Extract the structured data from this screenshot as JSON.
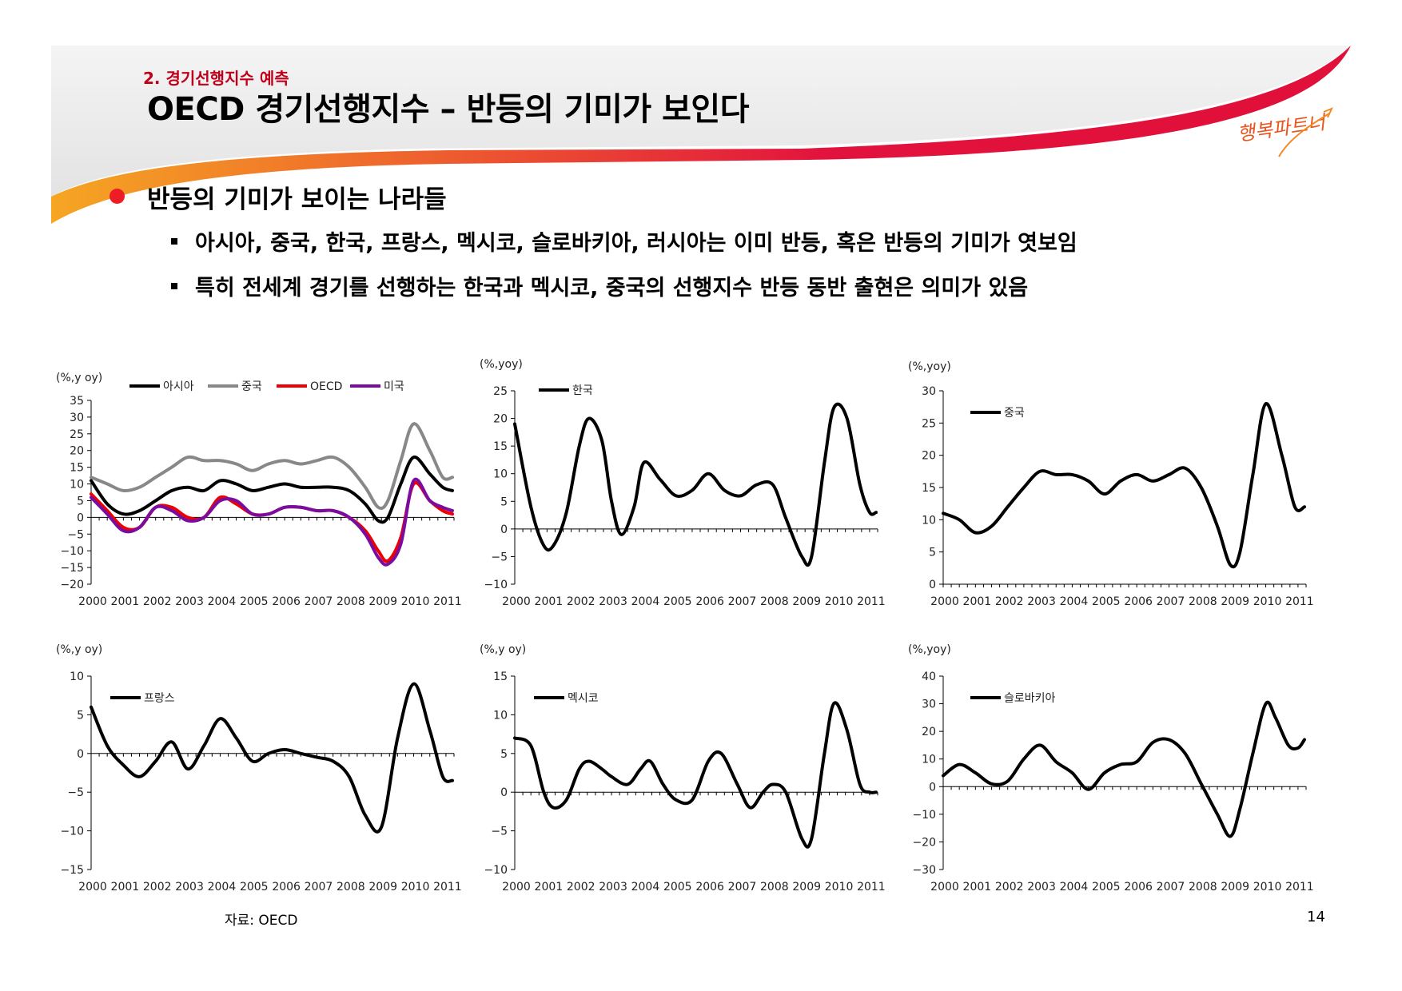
{
  "header": {
    "section": "2. 경기선행지수 예측",
    "title": "OECD 경기선행지수 – 반등의 기미가 보인다",
    "logo_text": "행복파트너"
  },
  "bullets": {
    "heading": "반등의 기미가 보이는 나라들",
    "items": [
      "아시아, 중국, 한국, 프랑스, 멕시코, 슬로바키아, 러시아는 이미 반등, 혹은 반등의 기미가 엿보임",
      "특히 전세계 경기를 선행하는 한국과 멕시코, 중국의 선행지수 반등 동반 출현은 의미가 있음"
    ]
  },
  "colors": {
    "accent_red": "#ee1c25",
    "section_red": "#c0001a",
    "asia": "#000000",
    "china": "#888888",
    "oecd": "#ee0000",
    "usa": "#7a0ca0"
  },
  "footer": {
    "source": "자료: OECD",
    "page": "14"
  },
  "chart_data": [
    {
      "type": "line",
      "ylabel": "(%,y oy)",
      "ylim": [
        -20,
        35
      ],
      "ystep": 5,
      "x_start": 2000,
      "x_end": 2011.25,
      "xticks": [
        "2000",
        "2001",
        "2002",
        "2003",
        "2004",
        "2005",
        "2006",
        "2007",
        "2008",
        "2009",
        "2010",
        "2011"
      ],
      "series": [
        {
          "name": "아시아",
          "color": "#000000",
          "x": [
            2000,
            2000.5,
            2001,
            2001.5,
            2002,
            2002.5,
            2003,
            2003.5,
            2004,
            2004.5,
            2005,
            2005.5,
            2006,
            2006.5,
            2007,
            2007.5,
            2008,
            2008.5,
            2008.9,
            2009.2,
            2009.6,
            2010,
            2010.5,
            2010.9,
            2011.2
          ],
          "values": [
            11,
            4,
            1,
            2,
            5,
            8,
            9,
            8,
            11,
            10,
            8,
            9,
            10,
            9,
            9,
            9,
            8,
            4,
            -1,
            0,
            10,
            18,
            13,
            9,
            8
          ]
        },
        {
          "name": "중국",
          "color": "#888888",
          "x": [
            2000,
            2000.5,
            2001,
            2001.5,
            2002,
            2002.5,
            2003,
            2003.5,
            2004,
            2004.5,
            2005,
            2005.5,
            2006,
            2006.5,
            2007,
            2007.5,
            2008,
            2008.5,
            2008.9,
            2009.2,
            2009.6,
            2010,
            2010.5,
            2010.9,
            2011.2
          ],
          "values": [
            12,
            10,
            8,
            9,
            12,
            15,
            18,
            17,
            17,
            16,
            14,
            16,
            17,
            16,
            17,
            18,
            15,
            9,
            3,
            5,
            17,
            28,
            20,
            12,
            12
          ]
        },
        {
          "name": "OECD",
          "color": "#ee0000",
          "x": [
            2000,
            2000.5,
            2001,
            2001.5,
            2002,
            2002.5,
            2003,
            2003.5,
            2004,
            2004.5,
            2005,
            2005.5,
            2006,
            2006.5,
            2007,
            2007.5,
            2008,
            2008.5,
            2008.9,
            2009.2,
            2009.6,
            2010,
            2010.5,
            2010.9,
            2011.2
          ],
          "values": [
            7,
            2,
            -3,
            -3,
            3,
            3,
            0,
            0,
            6,
            4,
            1,
            1,
            3,
            3,
            2,
            2,
            0,
            -4,
            -10,
            -13,
            -6,
            10,
            5,
            2,
            1
          ]
        },
        {
          "name": "미국",
          "color": "#7a0ca0",
          "x": [
            2000,
            2000.5,
            2001,
            2001.5,
            2002,
            2002.5,
            2003,
            2003.5,
            2004,
            2004.5,
            2005,
            2005.5,
            2006,
            2006.5,
            2007,
            2007.5,
            2008,
            2008.5,
            2008.9,
            2009.2,
            2009.6,
            2010,
            2010.5,
            2010.9,
            2011.2
          ],
          "values": [
            6,
            1,
            -4,
            -3,
            3,
            2,
            -1,
            0,
            5,
            5,
            1,
            1,
            3,
            3,
            2,
            2,
            0,
            -5,
            -12,
            -14,
            -8,
            11,
            5,
            3,
            2
          ]
        }
      ]
    },
    {
      "type": "line",
      "ylabel": "(%,yoy)",
      "ylim": [
        -10,
        25
      ],
      "ystep": 5,
      "x_start": 2000,
      "x_end": 2011.25,
      "xticks": [
        "2000",
        "2001",
        "2002",
        "2003",
        "2004",
        "2005",
        "2006",
        "2007",
        "2008",
        "2009",
        "2010",
        "2011"
      ],
      "series": [
        {
          "name": "한국",
          "color": "#000000",
          "x": [
            2000,
            2000.5,
            2000.9,
            2001.2,
            2001.6,
            2002,
            2002.3,
            2002.7,
            2003,
            2003.3,
            2003.7,
            2004,
            2004.5,
            2005,
            2005.5,
            2006,
            2006.5,
            2007,
            2007.5,
            2008,
            2008.4,
            2008.9,
            2009.2,
            2009.6,
            2009.9,
            2010.3,
            2010.7,
            2011,
            2011.2
          ],
          "values": [
            19,
            4,
            -3,
            -3,
            3,
            15,
            20,
            16,
            5,
            -1,
            4,
            12,
            9,
            6,
            7,
            10,
            7,
            6,
            8,
            8,
            2,
            -5,
            -5,
            12,
            22,
            20,
            8,
            3,
            3
          ]
        }
      ]
    },
    {
      "type": "line",
      "ylabel": "(%,yoy)",
      "ylim": [
        0,
        30
      ],
      "ystep": 5,
      "x_start": 2000,
      "x_end": 2011.25,
      "xticks": [
        "2000",
        "2001",
        "2002",
        "2003",
        "2004",
        "2005",
        "2006",
        "2007",
        "2008",
        "2009",
        "2010",
        "2011"
      ],
      "series": [
        {
          "name": "중국",
          "color": "#000000",
          "x": [
            2000,
            2000.5,
            2001,
            2001.5,
            2002,
            2002.5,
            2003,
            2003.5,
            2004,
            2004.5,
            2005,
            2005.5,
            2006,
            2006.5,
            2007,
            2007.5,
            2008,
            2008.5,
            2008.9,
            2009.2,
            2009.6,
            2010,
            2010.5,
            2010.9,
            2011.2
          ],
          "values": [
            11,
            10,
            8,
            9,
            12,
            15,
            17.5,
            17,
            17,
            16,
            14,
            16,
            17,
            16,
            17,
            18,
            15,
            9,
            3,
            5,
            17,
            28,
            20,
            12,
            12
          ]
        }
      ]
    },
    {
      "type": "line",
      "ylabel": "(%,y oy)",
      "ylim": [
        -15,
        10
      ],
      "ystep": 5,
      "x_start": 2000,
      "x_end": 2011.25,
      "xticks": [
        "2000",
        "2001",
        "2002",
        "2003",
        "2004",
        "2005",
        "2006",
        "2007",
        "2008",
        "2009",
        "2010",
        "2011"
      ],
      "series": [
        {
          "name": "프랑스",
          "color": "#000000",
          "x": [
            2000,
            2000.5,
            2001,
            2001.5,
            2002,
            2002.5,
            2003,
            2003.5,
            2004,
            2004.5,
            2005,
            2005.5,
            2006,
            2006.5,
            2007,
            2007.5,
            2008,
            2008.5,
            2009,
            2009.5,
            2010,
            2010.5,
            2010.9,
            2011.2
          ],
          "values": [
            6,
            1,
            -1.5,
            -3,
            -1,
            1.5,
            -2,
            1,
            4.5,
            2,
            -1,
            0,
            0.5,
            0,
            -0.5,
            -1,
            -3,
            -8,
            -9.5,
            2,
            9,
            3,
            -3,
            -3.5
          ]
        }
      ]
    },
    {
      "type": "line",
      "ylabel": "(%,y oy)",
      "ylim": [
        -10,
        15
      ],
      "ystep": 5,
      "x_start": 2000,
      "x_end": 2011.25,
      "xticks": [
        "2000",
        "2001",
        "2002",
        "2003",
        "2004",
        "2005",
        "2006",
        "2007",
        "2008",
        "2009",
        "2010",
        "2011"
      ],
      "series": [
        {
          "name": "멕시코",
          "color": "#000000",
          "x": [
            2000,
            2000.5,
            2000.9,
            2001.2,
            2001.6,
            2002,
            2002.3,
            2002.7,
            2003,
            2003.5,
            2003.9,
            2004.2,
            2004.6,
            2005,
            2005.5,
            2006,
            2006.4,
            2006.9,
            2007.3,
            2007.7,
            2008,
            2008.4,
            2008.9,
            2009.2,
            2009.6,
            2009.9,
            2010.3,
            2010.7,
            2011,
            2011.2
          ],
          "values": [
            7,
            6,
            0,
            -2,
            -1,
            3,
            4,
            3,
            2,
            1,
            3,
            4,
            1,
            -1,
            -1,
            4,
            5,
            1,
            -2,
            0,
            1,
            0,
            -6,
            -6,
            5,
            11.5,
            8,
            1,
            0,
            0
          ]
        }
      ]
    },
    {
      "type": "line",
      "ylabel": "(%,yoy)",
      "ylim": [
        -30,
        40
      ],
      "ystep": 10,
      "x_start": 2000,
      "x_end": 2011.25,
      "xticks": [
        "2000",
        "2001",
        "2002",
        "2003",
        "2004",
        "2005",
        "2006",
        "2007",
        "2008",
        "2009",
        "2010",
        "2011"
      ],
      "series": [
        {
          "name": "슬로바키아",
          "color": "#000000",
          "x": [
            2000,
            2000.5,
            2001,
            2001.5,
            2002,
            2002.5,
            2003,
            2003.5,
            2004,
            2004.5,
            2005,
            2005.5,
            2006,
            2006.5,
            2007,
            2007.5,
            2008,
            2008.5,
            2008.9,
            2009.2,
            2009.6,
            2010,
            2010.3,
            2010.7,
            2011,
            2011.2
          ],
          "values": [
            4,
            8,
            5,
            1,
            2,
            10,
            15,
            9,
            5,
            -1,
            5,
            8,
            9,
            16,
            17,
            12,
            1,
            -10,
            -18,
            -8,
            12,
            30,
            25,
            15,
            14,
            17
          ]
        }
      ]
    }
  ]
}
